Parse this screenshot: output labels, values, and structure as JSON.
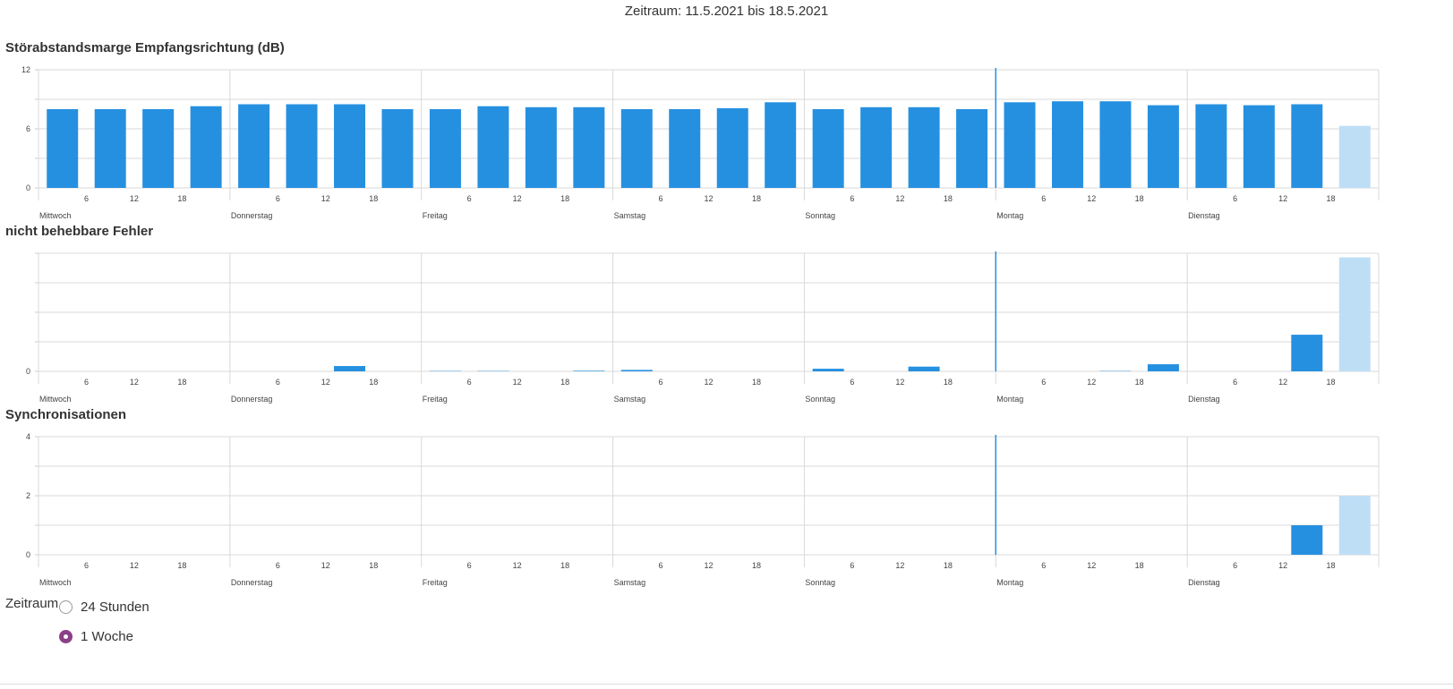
{
  "header": {
    "period_text": "Zeitraum: 11.5.2021 bis 18.5.2021"
  },
  "colors": {
    "bar": "#2690e0",
    "bar_current": "#bedef5",
    "now_line": "#2690e0",
    "grid": "#d9d9d9"
  },
  "hour_ticks": [
    "6",
    "12",
    "18"
  ],
  "controls": {
    "label": "Zeitraum",
    "options": [
      {
        "label": "24 Stunden",
        "selected": false
      },
      {
        "label": "1 Woche",
        "selected": true
      }
    ]
  },
  "chart_data": [
    {
      "type": "bar",
      "title": "Störabstandsmarge Empfangsrichtung (dB)",
      "days": [
        "Mittwoch",
        "Donnerstag",
        "Freitag",
        "Samstag",
        "Sonntag",
        "Montag",
        "Dienstag"
      ],
      "bar_hours": [
        3,
        9,
        15,
        21
      ],
      "ylim": [
        0,
        12
      ],
      "yticks": [
        "0",
        "6",
        "12"
      ],
      "values": [
        8,
        8,
        8,
        8.3,
        8.5,
        8.5,
        8.5,
        8,
        8,
        8.3,
        8.2,
        8.2,
        8,
        8,
        8.1,
        8.7,
        8,
        8.2,
        8.2,
        8,
        8.7,
        8.8,
        8.8,
        8.4,
        8.5,
        8.4,
        8.5,
        6.3
      ],
      "current_index": 27,
      "now_day_index": 5
    },
    {
      "type": "bar",
      "title": "nicht behebbare Fehler",
      "days": [
        "Mittwoch",
        "Donnerstag",
        "Freitag",
        "Samstag",
        "Sonntag",
        "Montag",
        "Dienstag"
      ],
      "bar_hours": [
        3,
        9,
        15,
        21
      ],
      "ylim": [
        0,
        100
      ],
      "yticks": [
        "0"
      ],
      "values": [
        0,
        0,
        0,
        0,
        0,
        0,
        4.5,
        0,
        0.3,
        0.3,
        0,
        0.5,
        1.2,
        0,
        0,
        0,
        2.2,
        0,
        4,
        0,
        0,
        0,
        0.3,
        6,
        0,
        0,
        31,
        96.5
      ],
      "current_index": 27,
      "now_day_index": 5
    },
    {
      "type": "bar",
      "title": "Synchronisationen",
      "days": [
        "Mittwoch",
        "Donnerstag",
        "Freitag",
        "Samstag",
        "Sonntag",
        "Montag",
        "Dienstag"
      ],
      "bar_hours": [
        3,
        9,
        15,
        21
      ],
      "ylim": [
        0,
        4
      ],
      "yticks": [
        "0",
        "2",
        "4"
      ],
      "values": [
        0,
        0,
        0,
        0,
        0,
        0,
        0,
        0,
        0,
        0,
        0,
        0,
        0,
        0,
        0,
        0,
        0,
        0,
        0,
        0,
        0,
        0,
        0,
        0,
        0,
        0,
        1,
        2
      ],
      "current_index": 27,
      "now_day_index": 5
    }
  ]
}
